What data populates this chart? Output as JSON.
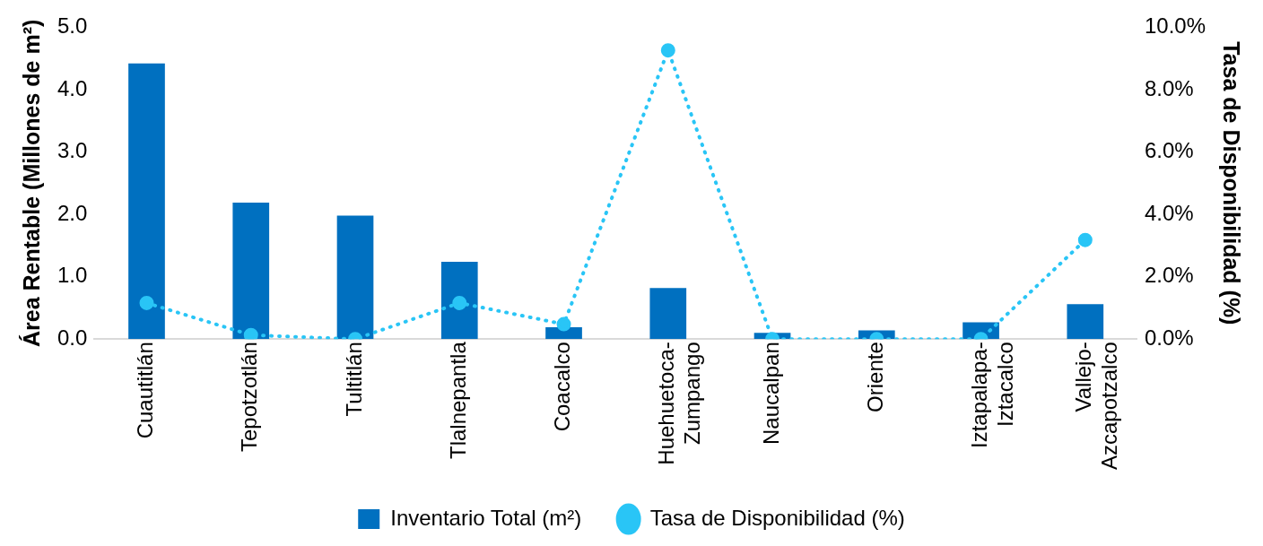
{
  "chart_data": {
    "type": "bar",
    "categories": [
      "Cuautitlán",
      "Tepotzotlán",
      "Tultitlán",
      "Tlalnepantla",
      "Coacalco",
      "Huehuetoca-Zumpango",
      "Naucalpan",
      "Oriente",
      "Iztapalapa-Iztacalco",
      "Vallejo-Azcapotzalco"
    ],
    "series": [
      {
        "name": "Inventario Total (m²)",
        "color": "#0070c0",
        "values": [
          4.42,
          2.19,
          1.98,
          1.24,
          0.19,
          0.82,
          0.1,
          0.14,
          0.27,
          0.56
        ]
      },
      {
        "name": "Tasa de Disponibilidad (%)",
        "type": "line",
        "axis": "y2",
        "color": "#29c5f6",
        "marker": "circle",
        "line_style": "dotted",
        "values": [
          1.16,
          0.13,
          0,
          1.16,
          0.48,
          9.26,
          0,
          0,
          0,
          3.18
        ]
      }
    ],
    "ylabel": "Área Rentable (Millones de m²)",
    "y2label": "Tasa de Disponibilidad (%)",
    "ylim": [
      0,
      5
    ],
    "yticks": [
      {
        "value": 0,
        "label": "0.0"
      },
      {
        "value": 1,
        "label": "1.0"
      },
      {
        "value": 2,
        "label": "2.0"
      },
      {
        "value": 3,
        "label": "3.0"
      },
      {
        "value": 4,
        "label": "4.0"
      },
      {
        "value": 5,
        "label": "5.0"
      }
    ],
    "y2lim": [
      0,
      10
    ],
    "y2ticks": [
      {
        "value": 0,
        "label": "0.0%"
      },
      {
        "value": 2,
        "label": "2.0%"
      },
      {
        "value": 4,
        "label": "4.0%"
      },
      {
        "value": 6,
        "label": "6.0%"
      },
      {
        "value": 8,
        "label": "8.0%"
      },
      {
        "value": 10,
        "label": "10.0%"
      }
    ],
    "grid": false,
    "legend": "bottom"
  }
}
